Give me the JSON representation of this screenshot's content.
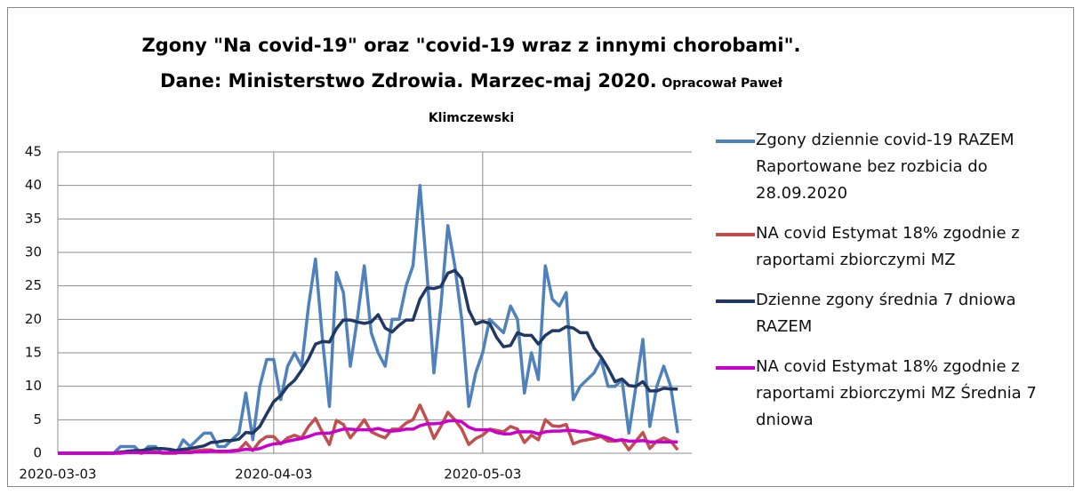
{
  "chart_data": {
    "type": "line",
    "title": "Zgony \"Na covid-19\" oraz \"covid-19 wraz z innymi chorobami\". Dane: Ministerstwo Zdrowia. Marzec-maj 2020.",
    "subtitle": "Opracował Paweł Klimczewski",
    "categories": [
      "2020-03-03",
      null,
      null,
      null,
      null,
      null,
      null,
      null,
      null,
      null,
      null,
      null,
      null,
      null,
      null,
      null,
      null,
      null,
      null,
      null,
      null,
      null,
      null,
      null,
      null,
      null,
      null,
      null,
      null,
      null,
      null,
      "2020-04-03",
      null,
      null,
      null,
      null,
      null,
      null,
      null,
      null,
      null,
      null,
      null,
      null,
      null,
      null,
      null,
      null,
      null,
      null,
      null,
      null,
      null,
      null,
      null,
      null,
      null,
      null,
      null,
      null,
      null,
      "2020-05-03",
      null,
      null,
      null,
      null,
      null,
      null,
      null,
      null,
      null,
      null,
      null,
      null,
      null,
      null,
      null,
      null,
      null,
      null,
      null,
      null,
      null,
      null,
      null,
      null,
      null,
      null,
      null,
      null
    ],
    "ylim": [
      0,
      45
    ],
    "yticks": [
      0,
      5,
      10,
      15,
      20,
      25,
      30,
      35,
      40,
      45
    ],
    "grid": true,
    "legend": "right",
    "series": [
      {
        "name": "Zgony dziennie covid-19 RAZEM Raportowane bez rozbicia do 28.09.2020",
        "color": "#4f81bd",
        "values": [
          0,
          0,
          0,
          0,
          0,
          0,
          0,
          0,
          0,
          1,
          1,
          1,
          0,
          1,
          1,
          0,
          0,
          0,
          2,
          1,
          2,
          3,
          3,
          1,
          1,
          2,
          3,
          9,
          2,
          10,
          14,
          14,
          8,
          13,
          15,
          13,
          22,
          29,
          17,
          7,
          27,
          24,
          13,
          20,
          28,
          18,
          15,
          13,
          20,
          20,
          25,
          28,
          40,
          27,
          12,
          22,
          34,
          28,
          20,
          7,
          12,
          15,
          20,
          19,
          18,
          22,
          20,
          9,
          15,
          11,
          28,
          23,
          22,
          24,
          8,
          10,
          11,
          12,
          14,
          10,
          10,
          11,
          3,
          10,
          17,
          4,
          10,
          13,
          10,
          3
        ]
      },
      {
        "name": "NA covid Estymat 18% zgodnie z raportami zbiorczymi MZ",
        "color": "#c0504d",
        "values": [
          0,
          0,
          0,
          0,
          0,
          0,
          0,
          0,
          0,
          0.2,
          0.2,
          0.2,
          0,
          0.2,
          0.2,
          0,
          0,
          0,
          0.4,
          0.2,
          0.4,
          0.5,
          0.5,
          0.2,
          0.2,
          0.4,
          0.5,
          1.6,
          0.4,
          1.8,
          2.5,
          2.5,
          1.4,
          2.3,
          2.7,
          2.3,
          4.0,
          5.2,
          3.1,
          1.3,
          4.9,
          4.3,
          2.3,
          3.6,
          5.0,
          3.2,
          2.7,
          2.3,
          3.6,
          3.6,
          4.5,
          5.0,
          7.2,
          4.9,
          2.2,
          4.0,
          6.1,
          5.0,
          3.6,
          1.3,
          2.2,
          2.7,
          3.6,
          3.4,
          3.2,
          4.0,
          3.6,
          1.6,
          2.7,
          2.0,
          5.0,
          4.1,
          4.0,
          4.3,
          1.4,
          1.8,
          2.0,
          2.2,
          2.5,
          1.8,
          1.8,
          2.0,
          0.5,
          1.8,
          3.1,
          0.7,
          1.8,
          2.3,
          1.8,
          0.5
        ]
      },
      {
        "name": "Dzienne zgony średnia 7 dniowa RAZEM",
        "color": "#1f3864",
        "values": [
          0,
          0,
          0,
          0,
          0,
          0,
          0,
          0,
          0,
          0.1,
          0.3,
          0.4,
          0.4,
          0.6,
          0.7,
          0.7,
          0.6,
          0.4,
          0.6,
          0.7,
          0.9,
          1.1,
          1.6,
          1.7,
          1.9,
          1.9,
          2.1,
          3.1,
          3.0,
          4.0,
          5.9,
          7.7,
          8.6,
          10.0,
          10.9,
          12.4,
          14.1,
          16.3,
          16.7,
          16.6,
          18.6,
          19.9,
          19.9,
          19.6,
          19.4,
          19.6,
          20.7,
          18.7,
          18.1,
          19.1,
          19.9,
          19.9,
          23.0,
          24.7,
          24.6,
          24.9,
          26.9,
          27.3,
          26.1,
          21.4,
          19.3,
          19.7,
          19.4,
          17.3,
          15.9,
          16.1,
          18.0,
          17.6,
          17.6,
          16.3,
          17.6,
          18.3,
          18.3,
          18.9,
          18.7,
          18.0,
          18.0,
          15.7,
          14.4,
          12.7,
          10.7,
          11.1,
          10.1,
          10.0,
          10.7,
          9.3,
          9.3,
          9.7,
          9.6,
          9.6
        ]
      },
      {
        "name": "NA covid Estymat 18% zgodnie z raportami zbiorczymi MZ Średnia 7 dniowa",
        "color": "#cc00cc",
        "values": [
          0,
          0,
          0,
          0,
          0,
          0,
          0,
          0,
          0,
          0.0,
          0.1,
          0.1,
          0.1,
          0.1,
          0.1,
          0.1,
          0.1,
          0.1,
          0.1,
          0.1,
          0.2,
          0.2,
          0.3,
          0.3,
          0.3,
          0.3,
          0.4,
          0.6,
          0.5,
          0.7,
          1.1,
          1.4,
          1.5,
          1.8,
          2.0,
          2.2,
          2.5,
          2.9,
          3.0,
          3.0,
          3.3,
          3.6,
          3.6,
          3.5,
          3.5,
          3.5,
          3.7,
          3.4,
          3.3,
          3.4,
          3.6,
          3.6,
          4.1,
          4.4,
          4.4,
          4.5,
          4.8,
          4.9,
          4.7,
          3.9,
          3.5,
          3.5,
          3.5,
          3.1,
          2.9,
          2.9,
          3.2,
          3.2,
          3.2,
          2.9,
          3.2,
          3.3,
          3.3,
          3.4,
          3.4,
          3.2,
          3.2,
          2.8,
          2.6,
          2.3,
          1.9,
          2.0,
          1.8,
          1.8,
          1.9,
          1.7,
          1.7,
          1.7,
          1.7,
          1.7
        ]
      }
    ]
  }
}
